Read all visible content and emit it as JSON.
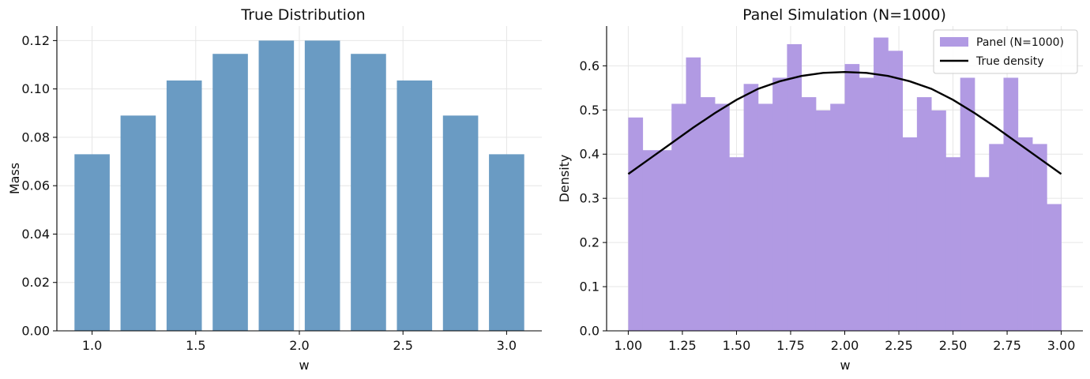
{
  "chart_data": [
    {
      "type": "bar",
      "title": "True Distribution",
      "xlabel": "w",
      "ylabel": "Mass",
      "x": [
        1.0,
        1.2222,
        1.4444,
        1.6667,
        1.8889,
        2.1111,
        2.3333,
        2.5556,
        2.7778,
        3.0
      ],
      "values": [
        0.073,
        0.089,
        0.1035,
        0.1145,
        0.12,
        0.12,
        0.1145,
        0.1035,
        0.089,
        0.073
      ],
      "xlim": [
        0.83,
        3.17
      ],
      "ylim": [
        0,
        0.126
      ],
      "xticks": [
        1.0,
        1.5,
        2.0,
        2.5,
        3.0
      ],
      "xtick_labels": [
        "1.0",
        "1.5",
        "2.0",
        "2.5",
        "3.0"
      ],
      "yticks": [
        0.0,
        0.02,
        0.04,
        0.06,
        0.08,
        0.1,
        0.12
      ],
      "ytick_labels": [
        "0.00",
        "0.02",
        "0.04",
        "0.06",
        "0.08",
        "0.10",
        "0.12"
      ],
      "grid": true,
      "color": "#6a9bc3"
    },
    {
      "type": "bar",
      "title": "Panel Simulation (N=1000)",
      "xlabel": "w",
      "ylabel": "Density",
      "bin_edges": [
        1.0,
        1.0667,
        1.1333,
        1.2,
        1.2667,
        1.3333,
        1.4,
        1.4667,
        1.5333,
        1.6,
        1.6667,
        1.7333,
        1.8,
        1.8667,
        1.9333,
        2.0,
        2.0667,
        2.1333,
        2.2,
        2.2667,
        2.3333,
        2.4,
        2.4667,
        2.5333,
        2.6,
        2.6667,
        2.7333,
        2.8,
        2.8667,
        2.9333,
        3.0
      ],
      "values": [
        0.483,
        0.409,
        0.409,
        0.514,
        0.619,
        0.529,
        0.514,
        0.393,
        0.559,
        0.514,
        0.573,
        0.649,
        0.529,
        0.499,
        0.514,
        0.604,
        0.573,
        0.664,
        0.634,
        0.438,
        0.529,
        0.499,
        0.393,
        0.573,
        0.348,
        0.423,
        0.573,
        0.438,
        0.423,
        0.287
      ],
      "series": [
        {
          "name": "Panel (N=1000)",
          "kind": "histogram",
          "color": "#b19ae3"
        },
        {
          "name": "True density",
          "kind": "line",
          "color": "#000000",
          "x": [
            1.0,
            1.1,
            1.2,
            1.3,
            1.4,
            1.5,
            1.6,
            1.7,
            1.8,
            1.9,
            2.0,
            2.1,
            2.2,
            2.3,
            2.4,
            2.5,
            2.6,
            2.7,
            2.8,
            2.9,
            3.0
          ],
          "y": [
            0.355,
            0.39,
            0.425,
            0.46,
            0.493,
            0.523,
            0.548,
            0.565,
            0.577,
            0.584,
            0.586,
            0.584,
            0.577,
            0.565,
            0.548,
            0.523,
            0.493,
            0.46,
            0.425,
            0.39,
            0.355
          ]
        }
      ],
      "xlim": [
        0.9,
        3.1
      ],
      "ylim": [
        0,
        0.69
      ],
      "xticks": [
        1.0,
        1.25,
        1.5,
        1.75,
        2.0,
        2.25,
        2.5,
        2.75,
        3.0
      ],
      "xtick_labels": [
        "1.00",
        "1.25",
        "1.50",
        "1.75",
        "2.00",
        "2.25",
        "2.50",
        "2.75",
        "3.00"
      ],
      "yticks": [
        0.0,
        0.1,
        0.2,
        0.3,
        0.4,
        0.5,
        0.6
      ],
      "ytick_labels": [
        "0.0",
        "0.1",
        "0.2",
        "0.3",
        "0.4",
        "0.5",
        "0.6"
      ],
      "grid": true,
      "legend": "top-right"
    }
  ]
}
